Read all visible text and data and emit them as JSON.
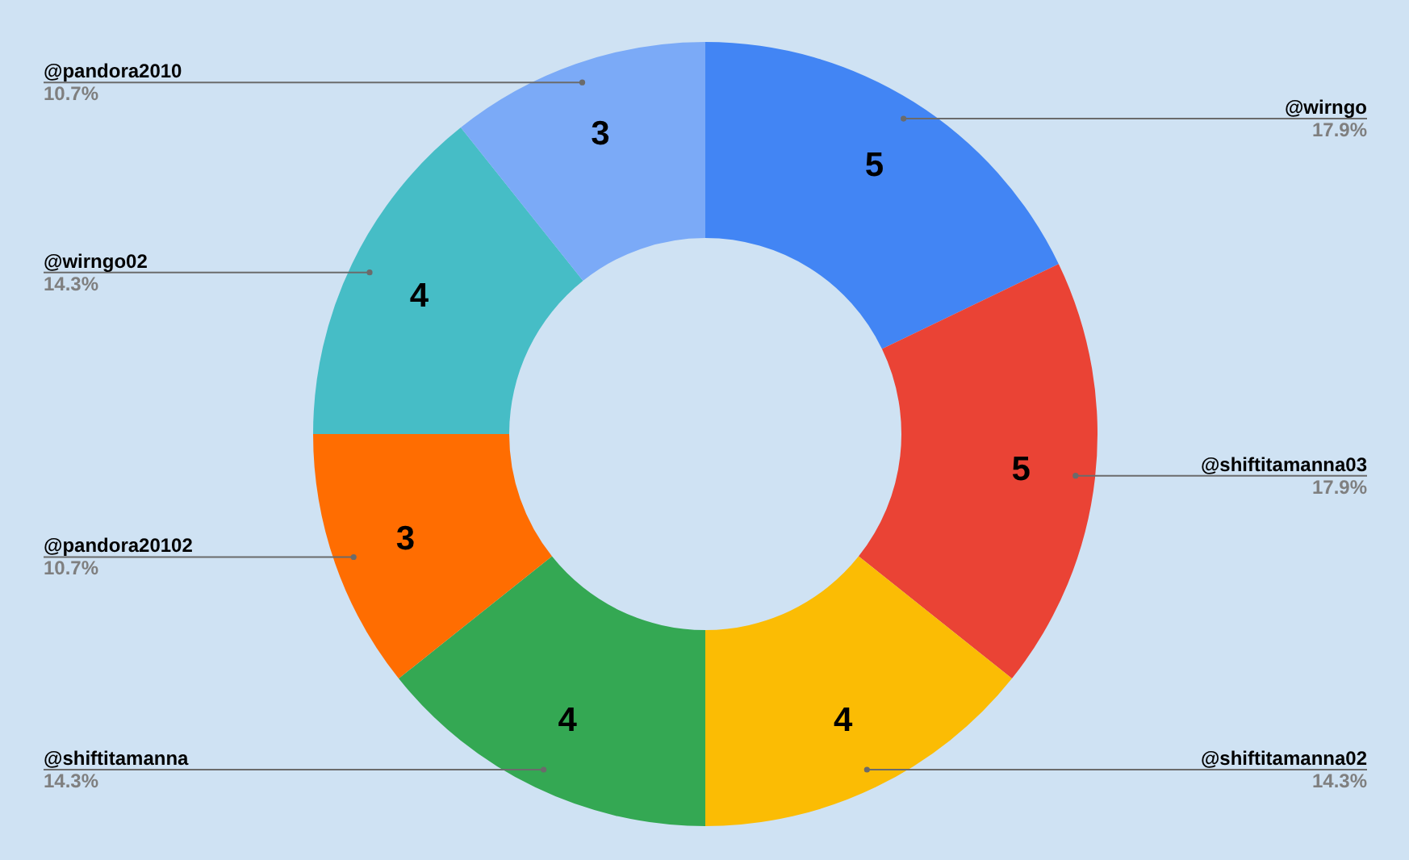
{
  "chart_data": {
    "type": "donut",
    "categories": [
      "@wirngo",
      "@shiftitamanna03",
      "@shiftitamanna02",
      "@shiftitamanna",
      "@pandora20102",
      "@wirngo02",
      "@pandora2010"
    ],
    "values": [
      5,
      5,
      4,
      4,
      3,
      4,
      3
    ],
    "colors": [
      "#4285f4",
      "#ea4335",
      "#fbbc04",
      "#34a853",
      "#ff6d01",
      "#46bdc6",
      "#7baaf7"
    ],
    "annotations": [
      "17.9%",
      "17.9%",
      "14.3%",
      "14.3%",
      "10.7%",
      "14.3%",
      "10.7%"
    ],
    "data_labels": true
  }
}
